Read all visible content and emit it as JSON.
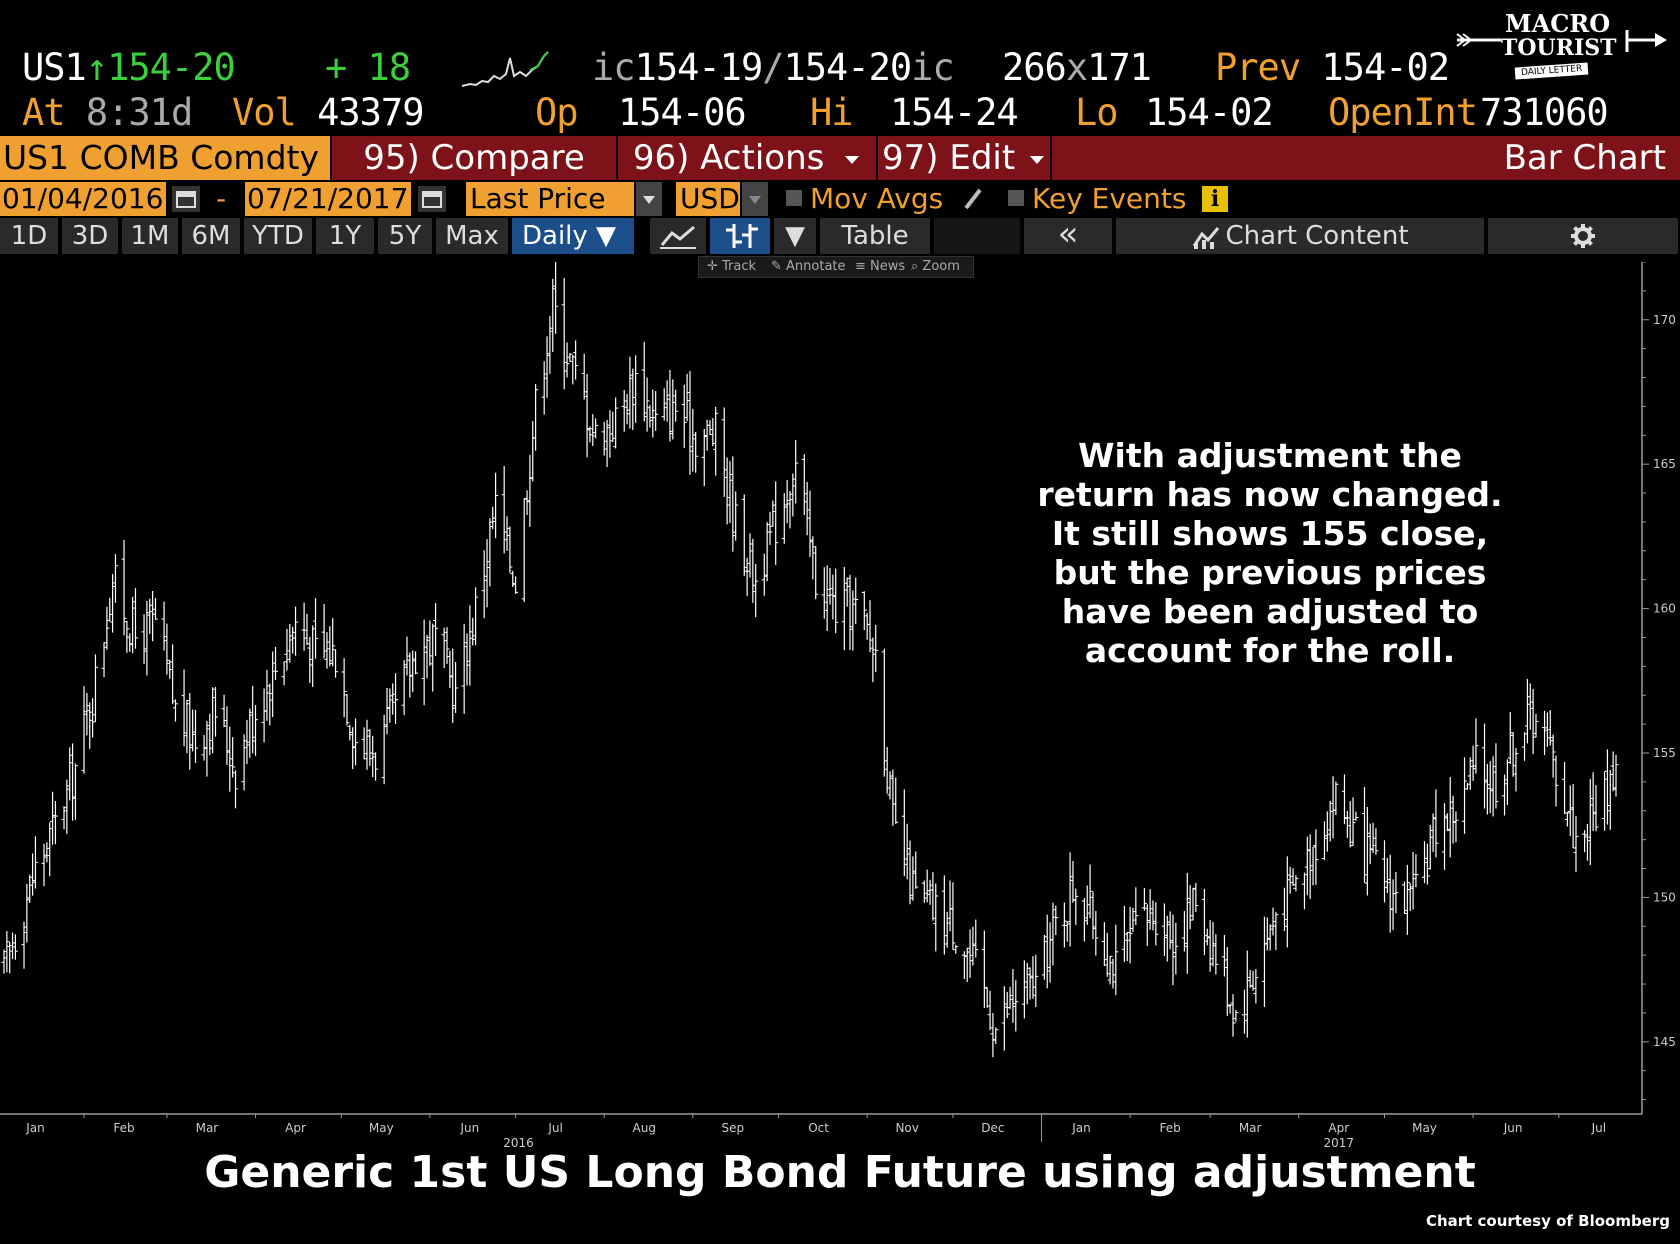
{
  "header": {
    "ticker": "US1",
    "arrow": "↑",
    "last": "154-20",
    "change": "+ 18",
    "bid_prefix": "ic",
    "bid": "154-19",
    "sep": "/",
    "ask": "154-20",
    "ask_suffix": "ic",
    "size_bid": "266",
    "size_x": "x",
    "size_ask": "171",
    "prev_label": "Prev",
    "prev": "154-02",
    "at_label": "At",
    "time": "8:31d",
    "vol_label": "Vol",
    "vol": "43379",
    "op_label": "Op",
    "op": "154-06",
    "hi_label": "Hi",
    "hi": "154-24",
    "lo_label": "Lo",
    "lo": "154-02",
    "oi_label": "OpenInt",
    "oi": "731060"
  },
  "logo": {
    "line1": "MACRO",
    "line2": "TOURIST",
    "line3": "DAILY LETTER"
  },
  "toolbar": {
    "security": "US1 COMB Comdty",
    "compare": "95) Compare",
    "actions": "96) Actions",
    "edit": "97) Edit",
    "chart_type": "Bar Chart",
    "start_date": "01/04/2016",
    "dash": "-",
    "end_date": "07/21/2017",
    "field": "Last Price",
    "currency": "USD",
    "mov_avgs": "Mov Avgs",
    "key_events": "Key Events",
    "info": "i"
  },
  "tabs": {
    "ranges": [
      "1D",
      "3D",
      "1M",
      "6M",
      "YTD",
      "1Y",
      "5Y",
      "Max"
    ],
    "period": "Daily ▼",
    "dropdown": "▼",
    "table": "Table",
    "collapse": "«",
    "chart_content": "Chart Content"
  },
  "mini_tools": {
    "track": "Track",
    "annotate": "Annotate",
    "news": "News",
    "zoom": "Zoom"
  },
  "annotation": [
    "With adjustment the",
    "return has now changed.",
    "It still shows 155 close,",
    "but the previous prices",
    "have been adjusted to",
    "account for the roll."
  ],
  "caption": "Generic 1st US Long Bond Future using adjustment",
  "credit": "Chart courtesy of Bloomberg",
  "colors": {
    "orange": "#f0a030",
    "red_bar": "#7d1219",
    "blue_tab": "#1c4f8a",
    "green": "#3ccf3c"
  },
  "chart_data": {
    "type": "bar",
    "series_style": "OHLC bars",
    "ylim": [
      142.5,
      172
    ],
    "yticks": [
      145,
      150,
      155,
      160,
      165,
      170
    ],
    "x_tick_labels": [
      "Jan",
      "Feb",
      "Mar",
      "Apr",
      "May",
      "Jun",
      "Jul",
      "Aug",
      "Sep",
      "Oct",
      "Nov",
      "Dec",
      "Jan",
      "Feb",
      "Mar",
      "Apr",
      "May",
      "Jun",
      "Jul"
    ],
    "x_year_labels": [
      "2016",
      "2017"
    ],
    "x_start": "2016-01-04",
    "x_end": "2017-07-21",
    "grid": false,
    "points": [
      [
        "2016-01-04",
        147.5
      ],
      [
        "2016-01-15",
        151.0
      ],
      [
        "2016-01-22",
        152.5
      ],
      [
        "2016-01-29",
        154.5
      ],
      [
        "2016-02-05",
        157.5
      ],
      [
        "2016-02-11",
        161.0
      ],
      [
        "2016-02-19",
        159.0
      ],
      [
        "2016-02-26",
        159.5
      ],
      [
        "2016-03-04",
        156.5
      ],
      [
        "2016-03-11",
        155.5
      ],
      [
        "2016-03-18",
        156.5
      ],
      [
        "2016-03-25",
        154.5
      ],
      [
        "2016-04-01",
        156.5
      ],
      [
        "2016-04-08",
        158.0
      ],
      [
        "2016-04-15",
        159.5
      ],
      [
        "2016-04-22",
        158.5
      ],
      [
        "2016-04-29",
        158.5
      ],
      [
        "2016-05-06",
        155.5
      ],
      [
        "2016-05-13",
        155.0
      ],
      [
        "2016-05-20",
        156.5
      ],
      [
        "2016-05-27",
        158.5
      ],
      [
        "2016-06-03",
        159.0
      ],
      [
        "2016-06-10",
        157.0
      ],
      [
        "2016-06-17",
        160.0
      ],
      [
        "2016-06-24",
        163.5
      ],
      [
        "2016-07-01",
        161.0
      ],
      [
        "2016-07-08",
        167.0
      ],
      [
        "2016-07-14",
        170.5
      ],
      [
        "2016-07-22",
        168.0
      ],
      [
        "2016-07-29",
        166.0
      ],
      [
        "2016-08-05",
        166.5
      ],
      [
        "2016-08-12",
        168.0
      ],
      [
        "2016-08-19",
        166.5
      ],
      [
        "2016-08-26",
        167.0
      ],
      [
        "2016-09-02",
        166.0
      ],
      [
        "2016-09-09",
        166.0
      ],
      [
        "2016-09-16",
        163.0
      ],
      [
        "2016-09-23",
        161.0
      ],
      [
        "2016-09-30",
        163.0
      ],
      [
        "2016-10-07",
        165.0
      ],
      [
        "2016-10-14",
        161.0
      ],
      [
        "2016-10-21",
        160.0
      ],
      [
        "2016-10-28",
        160.0
      ],
      [
        "2016-11-04",
        158.5
      ],
      [
        "2016-11-10",
        152.5
      ],
      [
        "2016-11-18",
        150.0
      ],
      [
        "2016-11-25",
        149.5
      ],
      [
        "2016-12-02",
        149.0
      ],
      [
        "2016-12-09",
        147.5
      ],
      [
        "2016-12-16",
        145.5
      ],
      [
        "2016-12-23",
        146.5
      ],
      [
        "2016-12-30",
        147.0
      ],
      [
        "2017-01-06",
        149.0
      ],
      [
        "2017-01-13",
        150.5
      ],
      [
        "2017-01-20",
        149.0
      ],
      [
        "2017-01-27",
        147.5
      ],
      [
        "2017-02-03",
        149.0
      ],
      [
        "2017-02-10",
        149.5
      ],
      [
        "2017-02-17",
        148.5
      ],
      [
        "2017-02-24",
        150.0
      ],
      [
        "2017-03-03",
        148.0
      ],
      [
        "2017-03-10",
        146.0
      ],
      [
        "2017-03-17",
        147.5
      ],
      [
        "2017-03-24",
        149.5
      ],
      [
        "2017-03-31",
        150.5
      ],
      [
        "2017-04-07",
        152.0
      ],
      [
        "2017-04-14",
        153.5
      ],
      [
        "2017-04-21",
        152.0
      ],
      [
        "2017-04-28",
        151.0
      ],
      [
        "2017-05-05",
        150.0
      ],
      [
        "2017-05-12",
        150.0
      ],
      [
        "2017-05-19",
        152.5
      ],
      [
        "2017-05-26",
        153.0
      ],
      [
        "2017-06-02",
        154.5
      ],
      [
        "2017-06-09",
        154.0
      ],
      [
        "2017-06-16",
        155.5
      ],
      [
        "2017-06-23",
        156.5
      ],
      [
        "2017-06-30",
        154.5
      ],
      [
        "2017-07-07",
        152.0
      ],
      [
        "2017-07-14",
        153.0
      ],
      [
        "2017-07-21",
        154.5
      ]
    ]
  }
}
